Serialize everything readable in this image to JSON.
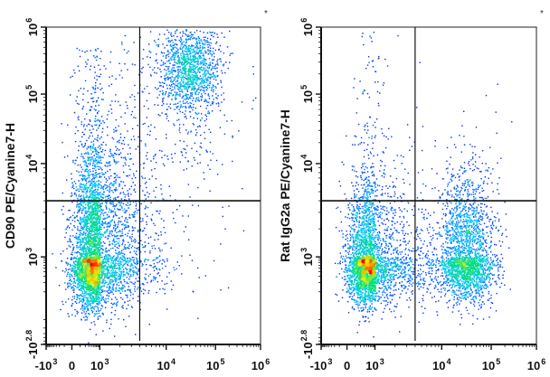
{
  "chart_data": [
    {
      "type": "scatter",
      "subtype": "flow-cytometry density dot plot",
      "corner_mark": "*",
      "xlabel": "",
      "ylabel": "CD90 PE/Cyanine7-H",
      "x_scale": "biexponential",
      "y_scale": "biexponential",
      "xlim": [
        -1000,
        1000000
      ],
      "ylim": [
        -631,
        1000000
      ],
      "x_ticks": [
        {
          "base": "-10",
          "exp": "3",
          "value": -1000
        },
        {
          "base": "0",
          "exp": "",
          "value": 0
        },
        {
          "base": "10",
          "exp": "3",
          "value": 1000
        },
        {
          "base": "10",
          "exp": "4",
          "value": 10000
        },
        {
          "base": "10",
          "exp": "5",
          "value": 100000
        },
        {
          "base": "10",
          "exp": "6",
          "value": 1000000
        }
      ],
      "y_ticks": [
        {
          "base": "-10",
          "exp": "2.8",
          "value": -631
        },
        {
          "base": "10",
          "exp": "3",
          "value": 1000
        },
        {
          "base": "10",
          "exp": "4",
          "value": 10000
        },
        {
          "base": "10",
          "exp": "5",
          "value": 100000
        },
        {
          "base": "10",
          "exp": "6",
          "value": 1000000
        }
      ],
      "quadrant_gates": {
        "x": 4000,
        "y": 4000
      },
      "colormap": [
        "#0000ff",
        "#00c8ff",
        "#00e070",
        "#f0f000",
        "#ff0000"
      ],
      "populations": [
        {
          "x": 500,
          "y": 600,
          "spread_x_decades": 0.5,
          "spread_y_decades": 0.55,
          "events": 3500
        },
        {
          "x": 700,
          "y": 2500,
          "spread_x_decades": 0.55,
          "spread_y_decades": 0.45,
          "events": 1000
        },
        {
          "x": 800,
          "y": 20000,
          "spread_x_decades": 0.55,
          "spread_y_decades": 0.9,
          "events": 500
        },
        {
          "x": 30000,
          "y": 250000,
          "spread_x_decades": 0.3,
          "spread_y_decades": 0.3,
          "events": 1200
        },
        {
          "x": 25000,
          "y": 100000,
          "spread_x_decades": 0.45,
          "spread_y_decades": 0.6,
          "events": 300
        },
        {
          "x": 20000,
          "y": 1500,
          "spread_x_decades": 0.7,
          "spread_y_decades": 0.7,
          "events": 40
        }
      ]
    },
    {
      "type": "scatter",
      "subtype": "flow-cytometry density dot plot",
      "corner_mark": "*",
      "xlabel": "",
      "ylabel": "Rat IgG2a PE/Cyanine7-H",
      "x_scale": "biexponential",
      "y_scale": "biexponential",
      "xlim": [
        -1000,
        1000000
      ],
      "ylim": [
        -631,
        1000000
      ],
      "x_ticks": [
        {
          "base": "-10",
          "exp": "3",
          "value": -1000
        },
        {
          "base": "0",
          "exp": "",
          "value": 0
        },
        {
          "base": "10",
          "exp": "3",
          "value": 1000
        },
        {
          "base": "10",
          "exp": "4",
          "value": 10000
        },
        {
          "base": "10",
          "exp": "5",
          "value": 100000
        },
        {
          "base": "10",
          "exp": "6",
          "value": 1000000
        }
      ],
      "y_ticks": [
        {
          "base": "-10",
          "exp": "2.8",
          "value": -631
        },
        {
          "base": "10",
          "exp": "3",
          "value": 1000
        },
        {
          "base": "10",
          "exp": "4",
          "value": 10000
        },
        {
          "base": "10",
          "exp": "5",
          "value": 100000
        },
        {
          "base": "10",
          "exp": "6",
          "value": 1000000
        }
      ],
      "quadrant_gates": {
        "x": 4000,
        "y": 4000
      },
      "colormap": [
        "#0000ff",
        "#00c8ff",
        "#00e070",
        "#f0f000",
        "#ff0000"
      ],
      "populations": [
        {
          "x": 500,
          "y": 650,
          "spread_x_decades": 0.5,
          "spread_y_decades": 0.5,
          "events": 3500
        },
        {
          "x": 30000,
          "y": 800,
          "spread_x_decades": 0.3,
          "spread_y_decades": 0.5,
          "events": 2500
        },
        {
          "x": 800,
          "y": 20000,
          "spread_x_decades": 0.35,
          "spread_y_decades": 0.9,
          "events": 120
        },
        {
          "x": 20000,
          "y": 15000,
          "spread_x_decades": 0.5,
          "spread_y_decades": 0.6,
          "events": 25
        }
      ]
    }
  ]
}
